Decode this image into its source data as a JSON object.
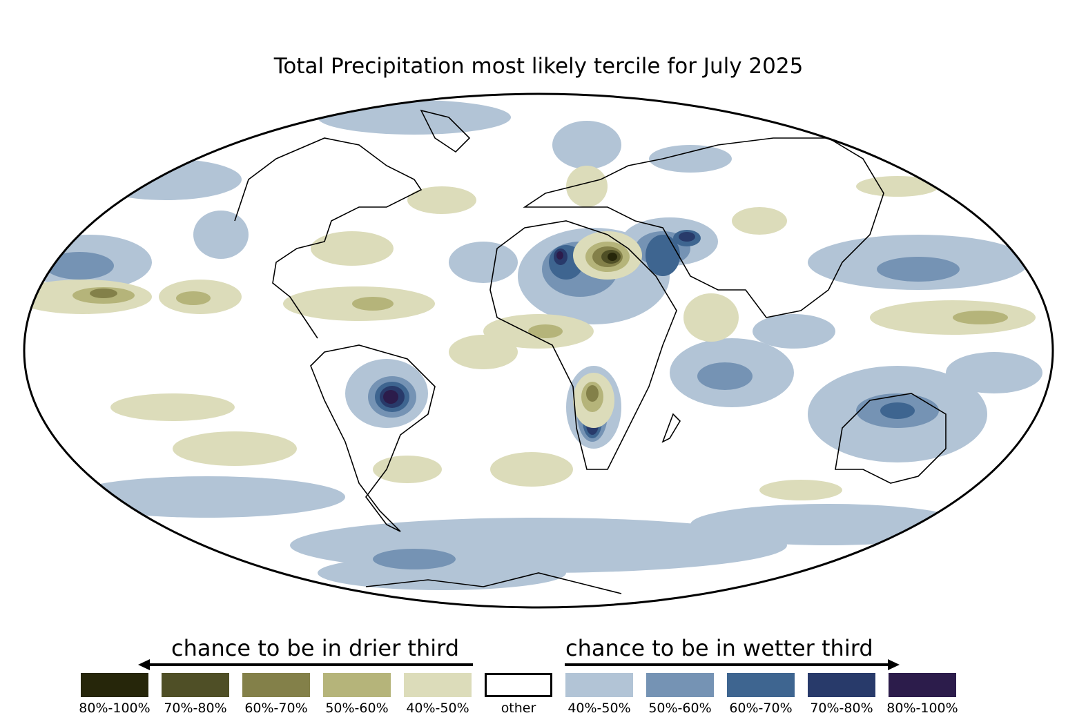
{
  "title": "Total Precipitation most likely tercile for July 2025",
  "legend": {
    "drier_label": "chance to be in drier third",
    "wetter_label": "chance to be in wetter third",
    "items": [
      {
        "label": "80%-100%",
        "color": "#26260a"
      },
      {
        "label": "70%-80%",
        "color": "#4f4f26"
      },
      {
        "label": "60%-70%",
        "color": "#838049"
      },
      {
        "label": "50%-60%",
        "color": "#b5b47a"
      },
      {
        "label": "40%-50%",
        "color": "#dcdcba"
      },
      {
        "label": "other",
        "color": "#ffffff"
      },
      {
        "label": "40%-50%",
        "color": "#b2c4d6"
      },
      {
        "label": "50%-60%",
        "color": "#7593b4"
      },
      {
        "label": "60%-70%",
        "color": "#3e6590"
      },
      {
        "label": "70%-80%",
        "color": "#283a6a"
      },
      {
        "label": "80%-100%",
        "color": "#2c1c4b"
      }
    ]
  }
}
